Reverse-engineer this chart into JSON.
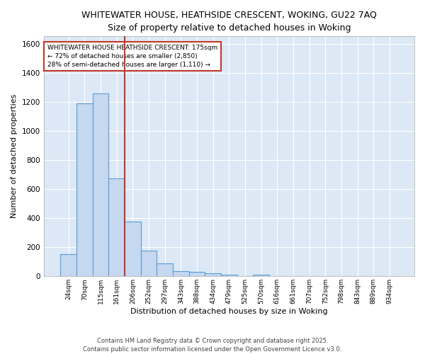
{
  "title_line1": "WHITEWATER HOUSE, HEATHSIDE CRESCENT, WOKING, GU22 7AQ",
  "title_line2": "Size of property relative to detached houses in Woking",
  "xlabel": "Distribution of detached houses by size in Woking",
  "ylabel": "Number of detached properties",
  "categories": [
    "24sqm",
    "70sqm",
    "115sqm",
    "161sqm",
    "206sqm",
    "252sqm",
    "297sqm",
    "343sqm",
    "388sqm",
    "434sqm",
    "479sqm",
    "525sqm",
    "570sqm",
    "616sqm",
    "661sqm",
    "707sqm",
    "752sqm",
    "798sqm",
    "843sqm",
    "889sqm",
    "934sqm"
  ],
  "values": [
    150,
    1190,
    1255,
    675,
    375,
    175,
    90,
    37,
    32,
    20,
    12,
    0,
    12,
    0,
    0,
    0,
    0,
    0,
    0,
    0,
    0
  ],
  "bar_color": "#c5d8f0",
  "bar_edge_color": "#5b9bd5",
  "background_color": "#dce8f5",
  "grid_color": "#ffffff",
  "vline_color": "#c0392b",
  "vline_pos": 3.5,
  "annotation_title": "WHITEWATER HOUSE HEATHSIDE CRESCENT: 175sqm",
  "annotation_line2": "← 72% of detached houses are smaller (2,850)",
  "annotation_line3": "28% of semi-detached houses are larger (1,110) →",
  "annotation_box_color": "#ffffff",
  "annotation_box_edge": "#c0392b",
  "ylim": [
    0,
    1650
  ],
  "yticks": [
    0,
    200,
    400,
    600,
    800,
    1000,
    1200,
    1400,
    1600
  ],
  "footer_line1": "Contains HM Land Registry data © Crown copyright and database right 2025.",
  "footer_line2": "Contains public sector information licensed under the Open Government Licence v3.0."
}
